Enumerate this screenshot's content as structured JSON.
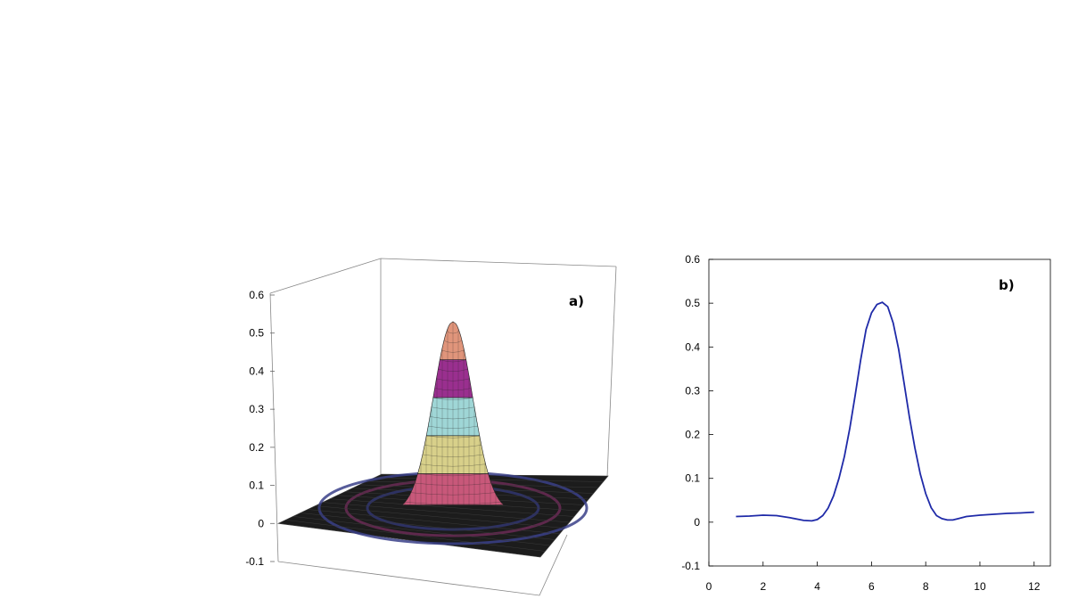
{
  "chart_data": [
    {
      "type": "surface",
      "panel_label": "a)",
      "z_ticks": [
        "0.6",
        "0.5",
        "0.4",
        "0.3",
        "0.2",
        "0.1",
        "0",
        "-0.1"
      ],
      "zlim": [
        -0.1,
        0.6
      ],
      "peak_z": 0.53,
      "band_colors": [
        "#c8587a",
        "#d8d08a",
        "#9fd6d6",
        "#9a2f8f",
        "#e0957b"
      ],
      "floor_color": "#1c1c1c"
    },
    {
      "type": "line",
      "panel_label": "b)",
      "x_ticks": [
        "0",
        "2",
        "4",
        "6",
        "8",
        "10",
        "12"
      ],
      "y_ticks": [
        "0.6",
        "0.5",
        "0.4",
        "0.3",
        "0.2",
        "0.1",
        "0",
        "-0.1"
      ],
      "xlim": [
        0,
        12.6
      ],
      "ylim": [
        -0.1,
        0.6
      ],
      "line_color": "#1f2aa8",
      "series": [
        {
          "x": [
            1.0,
            1.5,
            2.0,
            2.5,
            3.0,
            3.5,
            3.8,
            4.0,
            4.2,
            4.4,
            4.6,
            4.8,
            5.0,
            5.2,
            5.4,
            5.6,
            5.8,
            6.0,
            6.2,
            6.4,
            6.6,
            6.8,
            7.0,
            7.2,
            7.4,
            7.6,
            7.8,
            8.0,
            8.2,
            8.4,
            8.6,
            8.8,
            9.0,
            9.2,
            9.5,
            10.0,
            10.5,
            11.0,
            11.5,
            12.0
          ],
          "y": [
            0.013,
            0.014,
            0.016,
            0.015,
            0.01,
            0.004,
            0.003,
            0.006,
            0.015,
            0.032,
            0.06,
            0.1,
            0.15,
            0.215,
            0.29,
            0.37,
            0.44,
            0.478,
            0.497,
            0.502,
            0.492,
            0.455,
            0.395,
            0.318,
            0.24,
            0.17,
            0.11,
            0.065,
            0.033,
            0.015,
            0.008,
            0.005,
            0.005,
            0.008,
            0.013,
            0.016,
            0.018,
            0.02,
            0.021,
            0.023
          ]
        }
      ]
    }
  ]
}
